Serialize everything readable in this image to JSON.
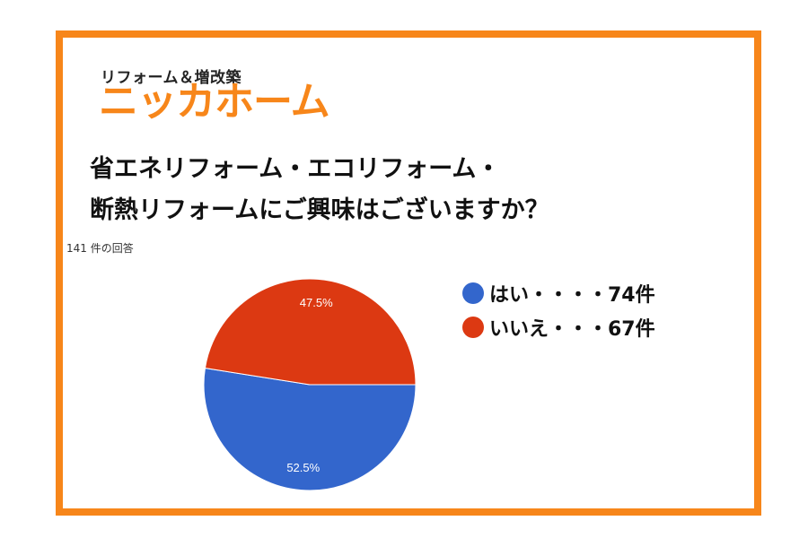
{
  "logo": {
    "subtitle": "リフォーム＆増改築",
    "brand": "ニッカホーム"
  },
  "question": {
    "line1": "省エネリフォーム・エコリフォーム・",
    "line2": "断熱リフォームにご興味はございますか？"
  },
  "responses": "141 件の回答",
  "colors": {
    "frame": "#f7861a",
    "yes": "#3366cc",
    "no": "#dc3912"
  },
  "chart_data": {
    "type": "pie",
    "slices": [
      {
        "label": "はい",
        "count": 74,
        "percent": 52.5,
        "percent_label": "52.5%",
        "color": "#3366cc"
      },
      {
        "label": "いいえ",
        "count": 67,
        "percent": 47.5,
        "percent_label": "47.5%",
        "color": "#dc3912"
      }
    ]
  },
  "legend": [
    {
      "text": "はい・・・・74件",
      "color": "#3366cc"
    },
    {
      "text": "いいえ・・・67件",
      "color": "#dc3912"
    }
  ]
}
